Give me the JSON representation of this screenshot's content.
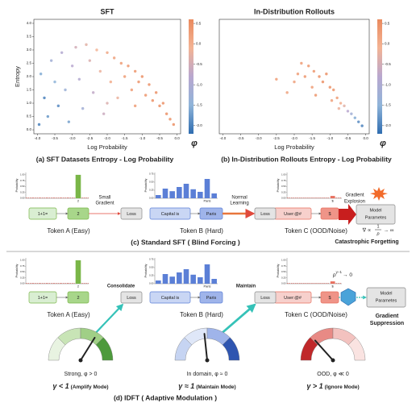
{
  "chart_data": [
    {
      "type": "scatter",
      "title": "SFT",
      "x_label": "Log Probability",
      "y_label": "Entropy",
      "xlim": [
        -4.1,
        0.1
      ],
      "ylim": [
        -0.15,
        4.15
      ],
      "xticks": [
        {
          "value": -4,
          "label": "-4.0"
        },
        -3.5,
        {
          "value": -3,
          "label": "-3.0"
        },
        -2.5,
        {
          "value": -2,
          "label": "-2.0"
        },
        -1.5,
        {
          "value": -1,
          "label": "-1.0"
        },
        -0.5,
        {
          "value": 0,
          "label": "0.0"
        }
      ],
      "yticks": [
        {
          "value": 0,
          "label": "0.0"
        },
        0.5,
        {
          "value": 1,
          "label": "1.0"
        },
        1.5,
        {
          "value": 2,
          "label": "2.0"
        },
        2.5,
        {
          "value": 3,
          "label": "3.0"
        },
        3.5,
        {
          "value": 4,
          "label": "4.0"
        }
      ],
      "colorbar": {
        "label": "φ",
        "lim": [
          -2.2,
          0.6
        ],
        "ticks": [
          0.5,
          {
            "value": 0,
            "label": "0.0"
          },
          -0.5,
          {
            "value": -1,
            "label": "-1.0"
          },
          -1.5,
          {
            "value": -2,
            "label": "-2.0"
          }
        ],
        "colors": [
          "#2f6db0",
          "#8fb4d9",
          "#b9a7cf",
          "#f3b394",
          "#ea8a5e"
        ]
      },
      "x": [
        -3.9,
        -3.8,
        -3.7,
        -3.6,
        -3.5,
        -3.4,
        -3.3,
        -3.2,
        -3.1,
        -3.0,
        -2.9,
        -2.8,
        -2.7,
        -2.6,
        -2.5,
        -2.4,
        -2.3,
        -2.2,
        -2.1,
        -2.0,
        -1.9,
        -1.8,
        -1.7,
        -1.6,
        -1.5,
        -1.4,
        -1.3,
        -1.2,
        -1.1,
        -1.0,
        -0.9,
        -0.8,
        -0.7,
        -0.6,
        -0.5,
        -0.4,
        -0.3,
        -0.2,
        -0.1,
        -3.95,
        -2.0,
        -1.2
      ],
      "y": [
        2.1,
        1.2,
        0.5,
        2.6,
        1.8,
        0.9,
        2.9,
        1.5,
        0.3,
        2.4,
        3.1,
        1.9,
        0.8,
        3.2,
        2.6,
        1.4,
        3.0,
        2.2,
        0.6,
        2.9,
        1.8,
        2.7,
        1.2,
        2.5,
        2.0,
        2.4,
        1.5,
        2.2,
        1.8,
        2.0,
        1.3,
        1.7,
        1.1,
        1.4,
        0.9,
        1.0,
        0.6,
        0.4,
        0.2,
        0.2,
        1.0,
        0.9
      ],
      "c": [
        -1.6,
        -2.0,
        -1.8,
        -1.2,
        -1.5,
        -1.9,
        -0.9,
        -1.3,
        -1.7,
        -0.8,
        -0.5,
        -0.9,
        -1.2,
        -0.3,
        -0.4,
        -0.7,
        -0.1,
        -0.2,
        -0.6,
        0.1,
        0.0,
        0.2,
        -0.2,
        0.3,
        0.3,
        0.4,
        0.3,
        0.4,
        0.4,
        0.5,
        0.4,
        0.5,
        0.5,
        0.5,
        0.5,
        0.5,
        0.5,
        0.5,
        0.5,
        -2.0,
        -0.4,
        0.3
      ]
    },
    {
      "type": "scatter",
      "title": "In-Distribution Rollouts",
      "x_label": "Log Probability",
      "xlim": [
        -4.1,
        0.1
      ],
      "ylim": [
        -0.15,
        4.15
      ],
      "xticks": [
        {
          "value": -4,
          "label": "-4.0"
        },
        -3.5,
        {
          "value": -3,
          "label": "-3.0"
        },
        -2.5,
        {
          "value": -2,
          "label": "-2.0"
        },
        -1.5,
        {
          "value": -1,
          "label": "-1.0"
        },
        -0.5,
        {
          "value": 0,
          "label": "0.0"
        }
      ],
      "colorbar": {
        "label": "φ",
        "lim": [
          -2.2,
          0.6
        ],
        "ticks": [
          0.5,
          {
            "value": 0,
            "label": "0.0"
          },
          -0.5,
          {
            "value": -1,
            "label": "-1.0"
          },
          -1.5,
          {
            "value": -2,
            "label": "-2.0"
          }
        ],
        "colors": [
          "#2f6db0",
          "#8fb4d9",
          "#b9a7cf",
          "#f3b394",
          "#ea8a5e"
        ]
      },
      "x": [
        -2.0,
        -1.9,
        -1.8,
        -1.7,
        -1.6,
        -1.5,
        -1.45,
        -1.3,
        -1.2,
        -1.1,
        -1.0,
        -0.9,
        -0.8,
        -0.7,
        -0.6,
        -0.5,
        -0.4,
        -0.3,
        -0.2,
        -0.1,
        -2.2,
        -1.4,
        -0.95,
        -2.5,
        -0.75
      ],
      "y": [
        1.8,
        2.1,
        2.5,
        2.0,
        2.4,
        1.6,
        2.2,
        2.0,
        1.8,
        2.1,
        1.6,
        1.5,
        1.2,
        1.0,
        0.9,
        0.7,
        0.6,
        0.45,
        0.3,
        0.15,
        1.4,
        1.3,
        1.1,
        1.9,
        0.8
      ],
      "c": [
        0.2,
        0.3,
        0.3,
        0.4,
        0.4,
        0.3,
        0.4,
        0.5,
        0.5,
        0.5,
        0.5,
        0.4,
        0.3,
        0.0,
        -0.3,
        -0.8,
        -1.2,
        -1.6,
        -1.9,
        -2.0,
        0.2,
        0.4,
        0.2,
        0.3,
        -0.2
      ]
    }
  ],
  "captions": {
    "a": "(a) SFT Datasets Entropy - Log Probability",
    "b": "(b) In-Distribution Rollouts Entropy - Log Probability",
    "c": "(c) Standard SFT ( Blind Forcing )",
    "d": "(d) IDFT ( Adaptive Modulation )"
  },
  "probability_charts": [
    {
      "y_label": "Probability",
      "ylim": [
        0,
        1.1
      ],
      "yticks": [
        {
          "value": 0,
          "label": "0.00"
        },
        {
          "value": 0.25,
          "label": "0.25"
        },
        {
          "value": 0.5,
          "label": "0.50"
        },
        {
          "value": 0.75,
          "label": "0.75"
        },
        {
          "value": 1,
          "label": "1.00"
        }
      ],
      "categories": [
        null,
        null,
        null,
        null,
        null,
        null,
        null,
        "2",
        null
      ],
      "values": [
        0.02,
        0.02,
        0.02,
        0.02,
        0.02,
        0.02,
        0.02,
        1.0,
        0.02
      ],
      "color": "#7ab648"
    },
    {
      "y_label": "Probability",
      "ylim": [
        0,
        0.8
      ],
      "yticks": [
        {
          "value": 0,
          "label": "0.00"
        },
        {
          "value": 0.25,
          "label": "0.25"
        },
        {
          "value": 0.5,
          "label": "0.50"
        },
        {
          "value": 0.75,
          "label": "0.75"
        }
      ],
      "categories": [
        null,
        null,
        null,
        null,
        null,
        null,
        null,
        "Paris",
        null
      ],
      "values": [
        0.1,
        0.3,
        0.22,
        0.35,
        0.45,
        0.28,
        0.2,
        0.6,
        0.15
      ],
      "color": "#5b7fd6"
    },
    {
      "y_label": "Probability",
      "ylim": [
        0,
        1.1
      ],
      "yticks": [
        {
          "value": 0,
          "label": "0.00"
        },
        {
          "value": 0.25,
          "label": "0.25"
        },
        {
          "value": 0.5,
          "label": "0.50"
        },
        {
          "value": 0.75,
          "label": "0.75"
        },
        {
          "value": 1,
          "label": "1.00"
        }
      ],
      "categories": [
        null,
        null,
        null,
        null,
        null,
        null,
        null,
        "$",
        null
      ],
      "values": [
        0.02,
        0.02,
        0.02,
        0.02,
        0.02,
        0.02,
        0.02,
        0.1,
        0.02
      ],
      "color": "#e8705f"
    }
  ],
  "standard_sft": {
    "tokens": [
      {
        "input": "1+1=",
        "output": "2",
        "name": "Token A (Easy)"
      },
      {
        "input": "Capital is",
        "output": "Paris",
        "name": "Token B (Hard)"
      },
      {
        "input": "User:@#",
        "output": "$",
        "name": "Token C (OOD/Noise)"
      }
    ],
    "loss": "Loss",
    "arrows": [
      [
        "Small",
        "Gradient"
      ],
      [
        "Normal",
        "Learning"
      ],
      [
        "Gradient",
        "Explosion"
      ]
    ],
    "model": [
      "Model",
      "Parametes"
    ],
    "formula": {
      "lhs": "∇ ∝",
      "num": "1",
      "den": "p",
      "rhs": "→ ∞"
    },
    "outcome": "Catastrophic Forgetting"
  },
  "idft": {
    "arrows": [
      "Consolidate",
      "Maintain"
    ],
    "suppression": {
      "base": "p",
      "exp": "γ−1",
      "rhs": "→ 0"
    },
    "outcome": [
      "Gradient",
      "Suppression"
    ],
    "gauges": [
      {
        "state": "Strong, φ > 0",
        "gamma": "γ < 1",
        "mode": "(Amplify Mode)"
      },
      {
        "state": "In domain, φ ≈ 0",
        "gamma": "γ ≈ 1",
        "mode": "(Maintain Mode)"
      },
      {
        "state": "OOD, φ ≪ 0",
        "gamma": "γ > 1",
        "mode": "(Ignore Mode)"
      }
    ]
  }
}
